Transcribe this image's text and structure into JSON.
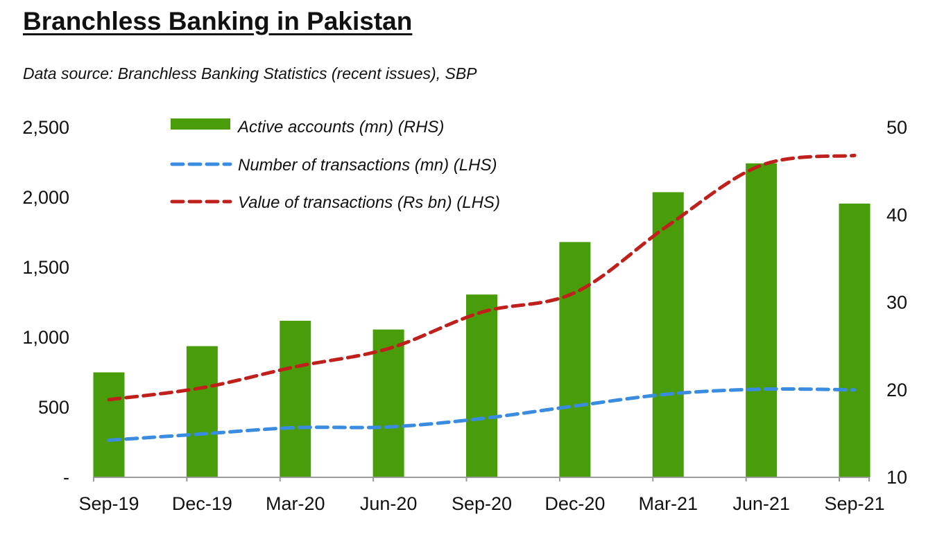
{
  "title": "Branchless Banking in Pakistan",
  "subtitle": "Data source: Branchless Banking  Statistics (recent issues), SBP",
  "colors": {
    "bars": "#4a9d0a",
    "number_line": "#3a8ce0",
    "value_line": "#c0201c"
  },
  "chart_data": {
    "type": "bar",
    "categories": [
      "Sep-19",
      "Dec-19",
      "Mar-20",
      "Jun-20",
      "Sep-20",
      "Dec-20",
      "Mar-21",
      "Jun-21",
      "Sep-21"
    ],
    "left_axis": {
      "ylim": [
        0,
        2500
      ],
      "ticks": [
        0,
        500,
        1000,
        1500,
        2000,
        2500
      ],
      "tick_labels": [
        "-",
        "500",
        "1,000",
        "1,500",
        "2,000",
        "2,500"
      ]
    },
    "right_axis": {
      "ylim": [
        10,
        50
      ],
      "ticks": [
        10,
        20,
        30,
        40,
        50
      ],
      "tick_labels": [
        "10",
        "20",
        "30",
        "40",
        "50"
      ]
    },
    "series": [
      {
        "name": "Active accounts  (mn) (RHS)",
        "type": "bar",
        "axis": "right",
        "values": [
          22.0,
          25.0,
          27.9,
          26.9,
          30.9,
          36.9,
          42.6,
          45.9,
          41.3
        ]
      },
      {
        "name": "Number of transactions  (mn) (LHS)",
        "type": "line",
        "style": "dashed",
        "axis": "left",
        "values": [
          265,
          310,
          355,
          360,
          420,
          510,
          595,
          630,
          625
        ]
      },
      {
        "name": "Value of transactions  (Rs bn) (LHS)",
        "type": "line",
        "style": "dashed",
        "axis": "left",
        "values": [
          555,
          640,
          790,
          920,
          1180,
          1320,
          1800,
          2230,
          2300
        ]
      }
    ],
    "legend": "top-left",
    "grid": false
  }
}
